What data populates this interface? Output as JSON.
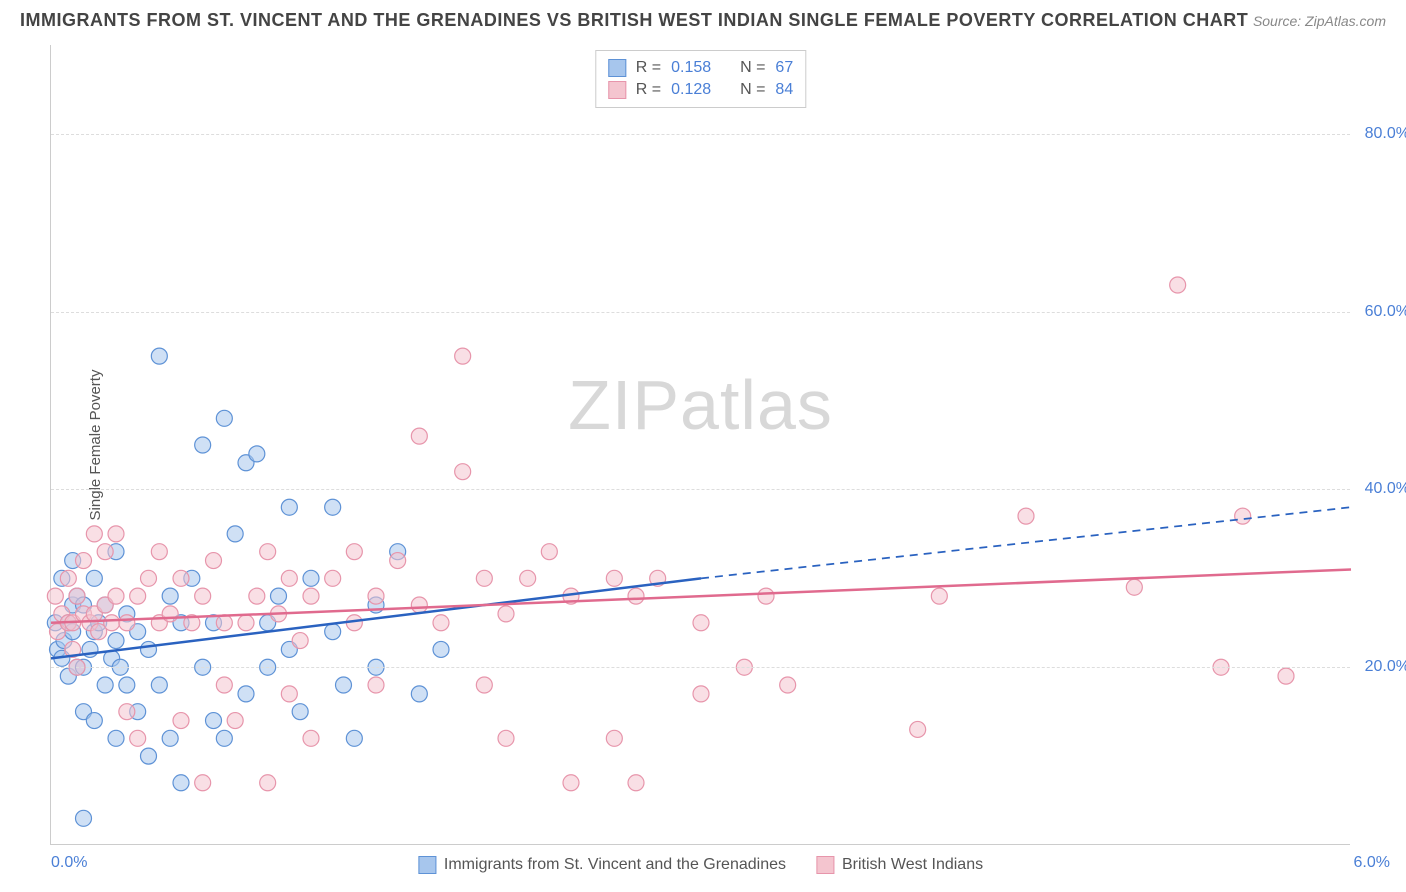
{
  "header": {
    "title": "IMMIGRANTS FROM ST. VINCENT AND THE GRENADINES VS BRITISH WEST INDIAN SINGLE FEMALE POVERTY CORRELATION CHART",
    "source": "Source: ZipAtlas.com"
  },
  "chart": {
    "type": "scatter",
    "ylabel": "Single Female Poverty",
    "watermark": "ZIPatlas",
    "xlim": [
      0,
      6
    ],
    "ylim": [
      0,
      90
    ],
    "xtick_labels": {
      "left": "0.0%",
      "right": "6.0%"
    },
    "ytick_labels": [
      {
        "v": 20,
        "label": "20.0%"
      },
      {
        "v": 40,
        "label": "40.0%"
      },
      {
        "v": 60,
        "label": "60.0%"
      },
      {
        "v": 80,
        "label": "80.0%"
      }
    ],
    "grid_color": "#dddddd",
    "axis_color": "#cccccc",
    "background_color": "#ffffff",
    "marker_radius": 8,
    "marker_opacity": 0.55,
    "marker_stroke_width": 1.2,
    "line_width": 2.5,
    "series": [
      {
        "name": "Immigrants from St. Vincent and the Grenadines",
        "color_fill": "#a7c6ed",
        "color_stroke": "#5e92d6",
        "line_color": "#2a62c0",
        "R": "0.158",
        "N": "67",
        "trend_solid": {
          "x1": 0,
          "y1": 21,
          "x2": 3.0,
          "y2": 30
        },
        "trend_dashed": {
          "x1": 3.0,
          "y1": 30,
          "x2": 6.0,
          "y2": 38
        },
        "points": [
          [
            0.02,
            25
          ],
          [
            0.03,
            22
          ],
          [
            0.05,
            21
          ],
          [
            0.05,
            30
          ],
          [
            0.06,
            23
          ],
          [
            0.08,
            25
          ],
          [
            0.08,
            19
          ],
          [
            0.1,
            24
          ],
          [
            0.1,
            27
          ],
          [
            0.1,
            32
          ],
          [
            0.12,
            20
          ],
          [
            0.12,
            28
          ],
          [
            0.15,
            27
          ],
          [
            0.15,
            20
          ],
          [
            0.15,
            15
          ],
          [
            0.15,
            3
          ],
          [
            0.18,
            22
          ],
          [
            0.2,
            24
          ],
          [
            0.2,
            30
          ],
          [
            0.2,
            14
          ],
          [
            0.22,
            25
          ],
          [
            0.25,
            18
          ],
          [
            0.25,
            27
          ],
          [
            0.28,
            21
          ],
          [
            0.3,
            12
          ],
          [
            0.3,
            23
          ],
          [
            0.3,
            33
          ],
          [
            0.32,
            20
          ],
          [
            0.35,
            18
          ],
          [
            0.35,
            26
          ],
          [
            0.4,
            15
          ],
          [
            0.4,
            24
          ],
          [
            0.45,
            10
          ],
          [
            0.45,
            22
          ],
          [
            0.5,
            18
          ],
          [
            0.5,
            55
          ],
          [
            0.55,
            12
          ],
          [
            0.55,
            28
          ],
          [
            0.6,
            25
          ],
          [
            0.6,
            7
          ],
          [
            0.65,
            30
          ],
          [
            0.7,
            45
          ],
          [
            0.7,
            20
          ],
          [
            0.75,
            25
          ],
          [
            0.75,
            14
          ],
          [
            0.8,
            12
          ],
          [
            0.8,
            48
          ],
          [
            0.85,
            35
          ],
          [
            0.9,
            43
          ],
          [
            0.9,
            17
          ],
          [
            0.95,
            44
          ],
          [
            1.0,
            20
          ],
          [
            1.0,
            25
          ],
          [
            1.05,
            28
          ],
          [
            1.1,
            38
          ],
          [
            1.1,
            22
          ],
          [
            1.15,
            15
          ],
          [
            1.2,
            30
          ],
          [
            1.3,
            24
          ],
          [
            1.3,
            38
          ],
          [
            1.35,
            18
          ],
          [
            1.4,
            12
          ],
          [
            1.5,
            27
          ],
          [
            1.5,
            20
          ],
          [
            1.6,
            33
          ],
          [
            1.7,
            17
          ],
          [
            1.8,
            22
          ]
        ]
      },
      {
        "name": "British West Indians",
        "color_fill": "#f4c5cf",
        "color_stroke": "#e795ab",
        "line_color": "#e06a8e",
        "R": "0.128",
        "N": "84",
        "trend_solid": {
          "x1": 0,
          "y1": 25,
          "x2": 6.0,
          "y2": 31
        },
        "trend_dashed": null,
        "points": [
          [
            0.02,
            28
          ],
          [
            0.03,
            24
          ],
          [
            0.05,
            26
          ],
          [
            0.08,
            25
          ],
          [
            0.08,
            30
          ],
          [
            0.1,
            25
          ],
          [
            0.1,
            22
          ],
          [
            0.12,
            28
          ],
          [
            0.12,
            20
          ],
          [
            0.15,
            26
          ],
          [
            0.15,
            32
          ],
          [
            0.18,
            25
          ],
          [
            0.2,
            26
          ],
          [
            0.2,
            35
          ],
          [
            0.22,
            24
          ],
          [
            0.25,
            27
          ],
          [
            0.25,
            33
          ],
          [
            0.28,
            25
          ],
          [
            0.3,
            28
          ],
          [
            0.3,
            35
          ],
          [
            0.35,
            25
          ],
          [
            0.35,
            15
          ],
          [
            0.4,
            28
          ],
          [
            0.4,
            12
          ],
          [
            0.45,
            30
          ],
          [
            0.5,
            25
          ],
          [
            0.5,
            33
          ],
          [
            0.55,
            26
          ],
          [
            0.6,
            30
          ],
          [
            0.6,
            14
          ],
          [
            0.65,
            25
          ],
          [
            0.7,
            28
          ],
          [
            0.7,
            7
          ],
          [
            0.75,
            32
          ],
          [
            0.8,
            25
          ],
          [
            0.8,
            18
          ],
          [
            0.85,
            14
          ],
          [
            0.9,
            25
          ],
          [
            0.95,
            28
          ],
          [
            1.0,
            33
          ],
          [
            1.0,
            7
          ],
          [
            1.05,
            26
          ],
          [
            1.1,
            30
          ],
          [
            1.1,
            17
          ],
          [
            1.15,
            23
          ],
          [
            1.2,
            28
          ],
          [
            1.2,
            12
          ],
          [
            1.3,
            30
          ],
          [
            1.4,
            25
          ],
          [
            1.4,
            33
          ],
          [
            1.5,
            28
          ],
          [
            1.5,
            18
          ],
          [
            1.6,
            32
          ],
          [
            1.7,
            27
          ],
          [
            1.7,
            46
          ],
          [
            1.8,
            25
          ],
          [
            1.9,
            55
          ],
          [
            1.9,
            42
          ],
          [
            2.0,
            30
          ],
          [
            2.0,
            18
          ],
          [
            2.1,
            26
          ],
          [
            2.1,
            12
          ],
          [
            2.2,
            30
          ],
          [
            2.3,
            33
          ],
          [
            2.4,
            28
          ],
          [
            2.4,
            7
          ],
          [
            2.6,
            30
          ],
          [
            2.6,
            12
          ],
          [
            2.7,
            28
          ],
          [
            2.7,
            7
          ],
          [
            2.8,
            30
          ],
          [
            3.0,
            25
          ],
          [
            3.0,
            17
          ],
          [
            3.2,
            20
          ],
          [
            3.3,
            28
          ],
          [
            3.4,
            18
          ],
          [
            4.0,
            13
          ],
          [
            4.1,
            28
          ],
          [
            4.5,
            37
          ],
          [
            5.0,
            29
          ],
          [
            5.2,
            63
          ],
          [
            5.4,
            20
          ],
          [
            5.5,
            37
          ],
          [
            5.7,
            19
          ]
        ]
      }
    ],
    "legend_top": {
      "r_label": "R =",
      "n_label": "N ="
    }
  }
}
